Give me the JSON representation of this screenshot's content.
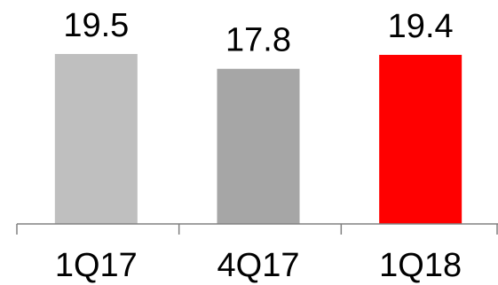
{
  "chart_data": {
    "type": "bar",
    "categories": [
      "1Q17",
      "4Q17",
      "1Q18"
    ],
    "values": [
      19.5,
      17.8,
      19.4
    ],
    "value_labels": [
      "19.5",
      "17.8",
      "19.4"
    ],
    "colors": [
      "#bfbfbf",
      "#a6a6a6",
      "#ff0000"
    ],
    "axis_color": "#808080",
    "ylim": [
      0,
      19.5
    ],
    "grid": false,
    "title": "",
    "xlabel": "",
    "ylabel": ""
  }
}
